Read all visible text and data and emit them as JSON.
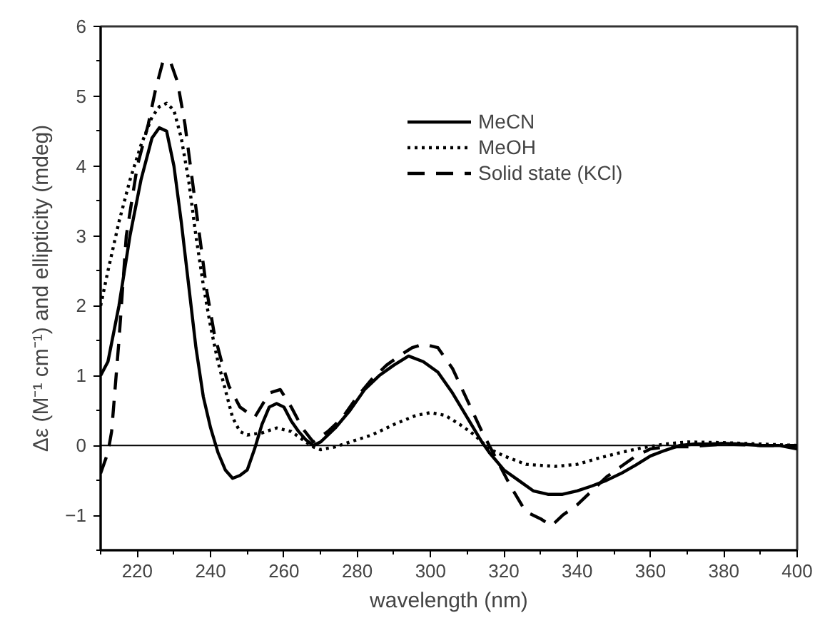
{
  "chart_data": {
    "type": "line",
    "xlabel": "wavelength (nm)",
    "ylabel": "Δε (M⁻¹ cm⁻¹) and ellipticity (mdeg)",
    "xlim": [
      210,
      400
    ],
    "xticks": [
      220,
      240,
      260,
      280,
      300,
      320,
      340,
      360,
      380,
      400
    ],
    "ylim": [
      -1.5,
      6
    ],
    "yticks": [
      -1,
      0,
      1,
      2,
      3,
      4,
      5,
      6
    ],
    "grid": false,
    "legend": "top right",
    "marker": "none",
    "ref_lines": [
      {
        "axis": "y",
        "value": 0,
        "color": "#000000",
        "line_style": "solid"
      }
    ],
    "series": [
      {
        "name": "MeCN",
        "color": "#000000",
        "line_style": "solid",
        "x": [
          210,
          212,
          215,
          218,
          221,
          224,
          226,
          228,
          230,
          232,
          234,
          236,
          238,
          240,
          242,
          244,
          246,
          248,
          250,
          252,
          254,
          256,
          258,
          260,
          262,
          264,
          266,
          268,
          270,
          274,
          278,
          282,
          286,
          290,
          294,
          298,
          302,
          306,
          310,
          314,
          316,
          320,
          324,
          328,
          332,
          336,
          340,
          344,
          348,
          352,
          356,
          360,
          364,
          368,
          372,
          376,
          380,
          385,
          390,
          395,
          400
        ],
        "values": [
          1.0,
          1.2,
          2.0,
          3.0,
          3.8,
          4.4,
          4.55,
          4.5,
          4.0,
          3.2,
          2.3,
          1.4,
          0.7,
          0.25,
          -0.1,
          -0.35,
          -0.47,
          -0.43,
          -0.35,
          -0.05,
          0.3,
          0.55,
          0.6,
          0.55,
          0.35,
          0.2,
          0.08,
          0.0,
          0.05,
          0.25,
          0.5,
          0.8,
          1.0,
          1.15,
          1.28,
          1.2,
          1.05,
          0.75,
          0.4,
          0.05,
          -0.1,
          -0.35,
          -0.5,
          -0.65,
          -0.7,
          -0.7,
          -0.65,
          -0.58,
          -0.5,
          -0.4,
          -0.28,
          -0.15,
          -0.07,
          0.0,
          0.02,
          0.02,
          0.03,
          0.02,
          0.0,
          0.0,
          -0.05
        ]
      },
      {
        "name": "MeOH",
        "color": "#000000",
        "line_style": "dotted",
        "x": [
          210,
          212,
          215,
          218,
          221,
          224,
          226,
          228,
          230,
          232,
          234,
          236,
          238,
          240,
          242,
          244,
          246,
          248,
          250,
          254,
          258,
          262,
          266,
          268,
          270,
          274,
          278,
          284,
          290,
          296,
          300,
          304,
          308,
          312,
          316,
          320,
          326,
          334,
          340,
          346,
          352,
          358,
          364,
          370,
          380,
          390,
          400
        ],
        "values": [
          2.0,
          2.5,
          3.2,
          3.8,
          4.3,
          4.7,
          4.85,
          4.9,
          4.8,
          4.4,
          3.8,
          3.0,
          2.3,
          1.7,
          1.2,
          0.8,
          0.4,
          0.2,
          0.15,
          0.18,
          0.25,
          0.2,
          0.05,
          -0.02,
          -0.06,
          -0.02,
          0.05,
          0.15,
          0.3,
          0.43,
          0.47,
          0.43,
          0.3,
          0.15,
          -0.05,
          -0.15,
          -0.27,
          -0.3,
          -0.27,
          -0.18,
          -0.1,
          -0.03,
          0.02,
          0.05,
          0.04,
          0.02,
          0.0
        ]
      },
      {
        "name": "Solid state (KCl)",
        "color": "#000000",
        "line_style": "dashed",
        "x": [
          210,
          212,
          213,
          215,
          217,
          220,
          223,
          225,
          227,
          229,
          231,
          233,
          235,
          237,
          239,
          241,
          243,
          245,
          248,
          252,
          256,
          259,
          262,
          265,
          268,
          272,
          276,
          280,
          284,
          288,
          292,
          295,
          298,
          302,
          306,
          310,
          314,
          318,
          322,
          326,
          330,
          333,
          336,
          340,
          344,
          348,
          352,
          356,
          360,
          364,
          370,
          380,
          390,
          400
        ],
        "values": [
          -0.4,
          -0.1,
          0.2,
          1.5,
          3.0,
          4.0,
          4.6,
          5.1,
          5.5,
          5.5,
          5.2,
          4.6,
          3.8,
          3.0,
          2.2,
          1.6,
          1.2,
          0.85,
          0.55,
          0.4,
          0.75,
          0.8,
          0.55,
          0.25,
          0.05,
          0.2,
          0.4,
          0.7,
          0.95,
          1.15,
          1.3,
          1.4,
          1.45,
          1.4,
          1.1,
          0.65,
          0.2,
          -0.2,
          -0.6,
          -0.95,
          -1.05,
          -1.15,
          -1.0,
          -0.85,
          -0.65,
          -0.45,
          -0.3,
          -0.15,
          -0.05,
          -0.02,
          -0.02,
          0.02,
          0.0,
          0.0
        ]
      }
    ]
  }
}
